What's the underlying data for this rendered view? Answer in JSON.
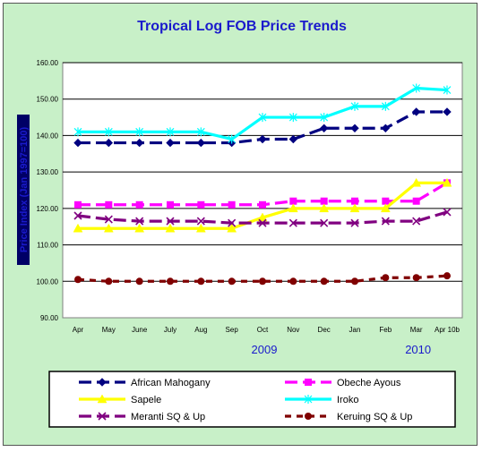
{
  "chart_data": {
    "type": "line",
    "title": "Tropical Log FOB Price Trends",
    "ylabel": "Price Index (Jan 1997=100)",
    "xlabel": "",
    "ylim": [
      90,
      160
    ],
    "yticks": [
      "90.00",
      "100.00",
      "110.00",
      "120.00",
      "130.00",
      "140.00",
      "150.00",
      "160.00"
    ],
    "categories": [
      "Apr",
      "May",
      "June",
      "July",
      "Aug",
      "Sep",
      "Oct",
      "Nov",
      "Dec",
      "Jan",
      "Feb",
      "Mar",
      "Apr 10b"
    ],
    "year_labels": [
      {
        "text": "2009",
        "category": "Oct"
      },
      {
        "text": "2010",
        "category": "Mar"
      }
    ],
    "grid": "horizontal",
    "legend_position": "bottom",
    "series": [
      {
        "name": "African Mahogany",
        "color": "#000080",
        "marker": "diamond",
        "dash": "long",
        "values": [
          138,
          138,
          138,
          138,
          138,
          138,
          139,
          139,
          142,
          142,
          142,
          146.5,
          146.5
        ]
      },
      {
        "name": "Obeche Ayous",
        "color": "#ff00ff",
        "marker": "square",
        "dash": "long",
        "values": [
          121,
          121,
          121,
          121,
          121,
          121,
          121,
          122,
          122,
          122,
          122,
          122,
          127
        ]
      },
      {
        "name": "Sapele",
        "color": "#ffff00",
        "marker": "triangle",
        "dash": "solid",
        "values": [
          114.5,
          114.5,
          114.5,
          114.5,
          114.5,
          114.5,
          117.5,
          120,
          120,
          120,
          120,
          127,
          127
        ]
      },
      {
        "name": "Iroko",
        "color": "#00ffff",
        "marker": "star",
        "dash": "solid",
        "values": [
          141,
          141,
          141,
          141,
          141,
          139,
          145,
          145,
          145,
          148,
          148,
          153,
          152.5
        ]
      },
      {
        "name": "Meranti SQ & Up",
        "color": "#800080",
        "marker": "x",
        "dash": "long",
        "values": [
          118,
          117,
          116.5,
          116.5,
          116.5,
          116,
          116,
          116,
          116,
          116,
          116.5,
          116.5,
          119
        ]
      },
      {
        "name": "Keruing SQ & Up",
        "color": "#800000",
        "marker": "circle",
        "dash": "short",
        "values": [
          100.5,
          100,
          100,
          100,
          100,
          100,
          100,
          100,
          100,
          100,
          101,
          101,
          101.5
        ]
      }
    ]
  }
}
